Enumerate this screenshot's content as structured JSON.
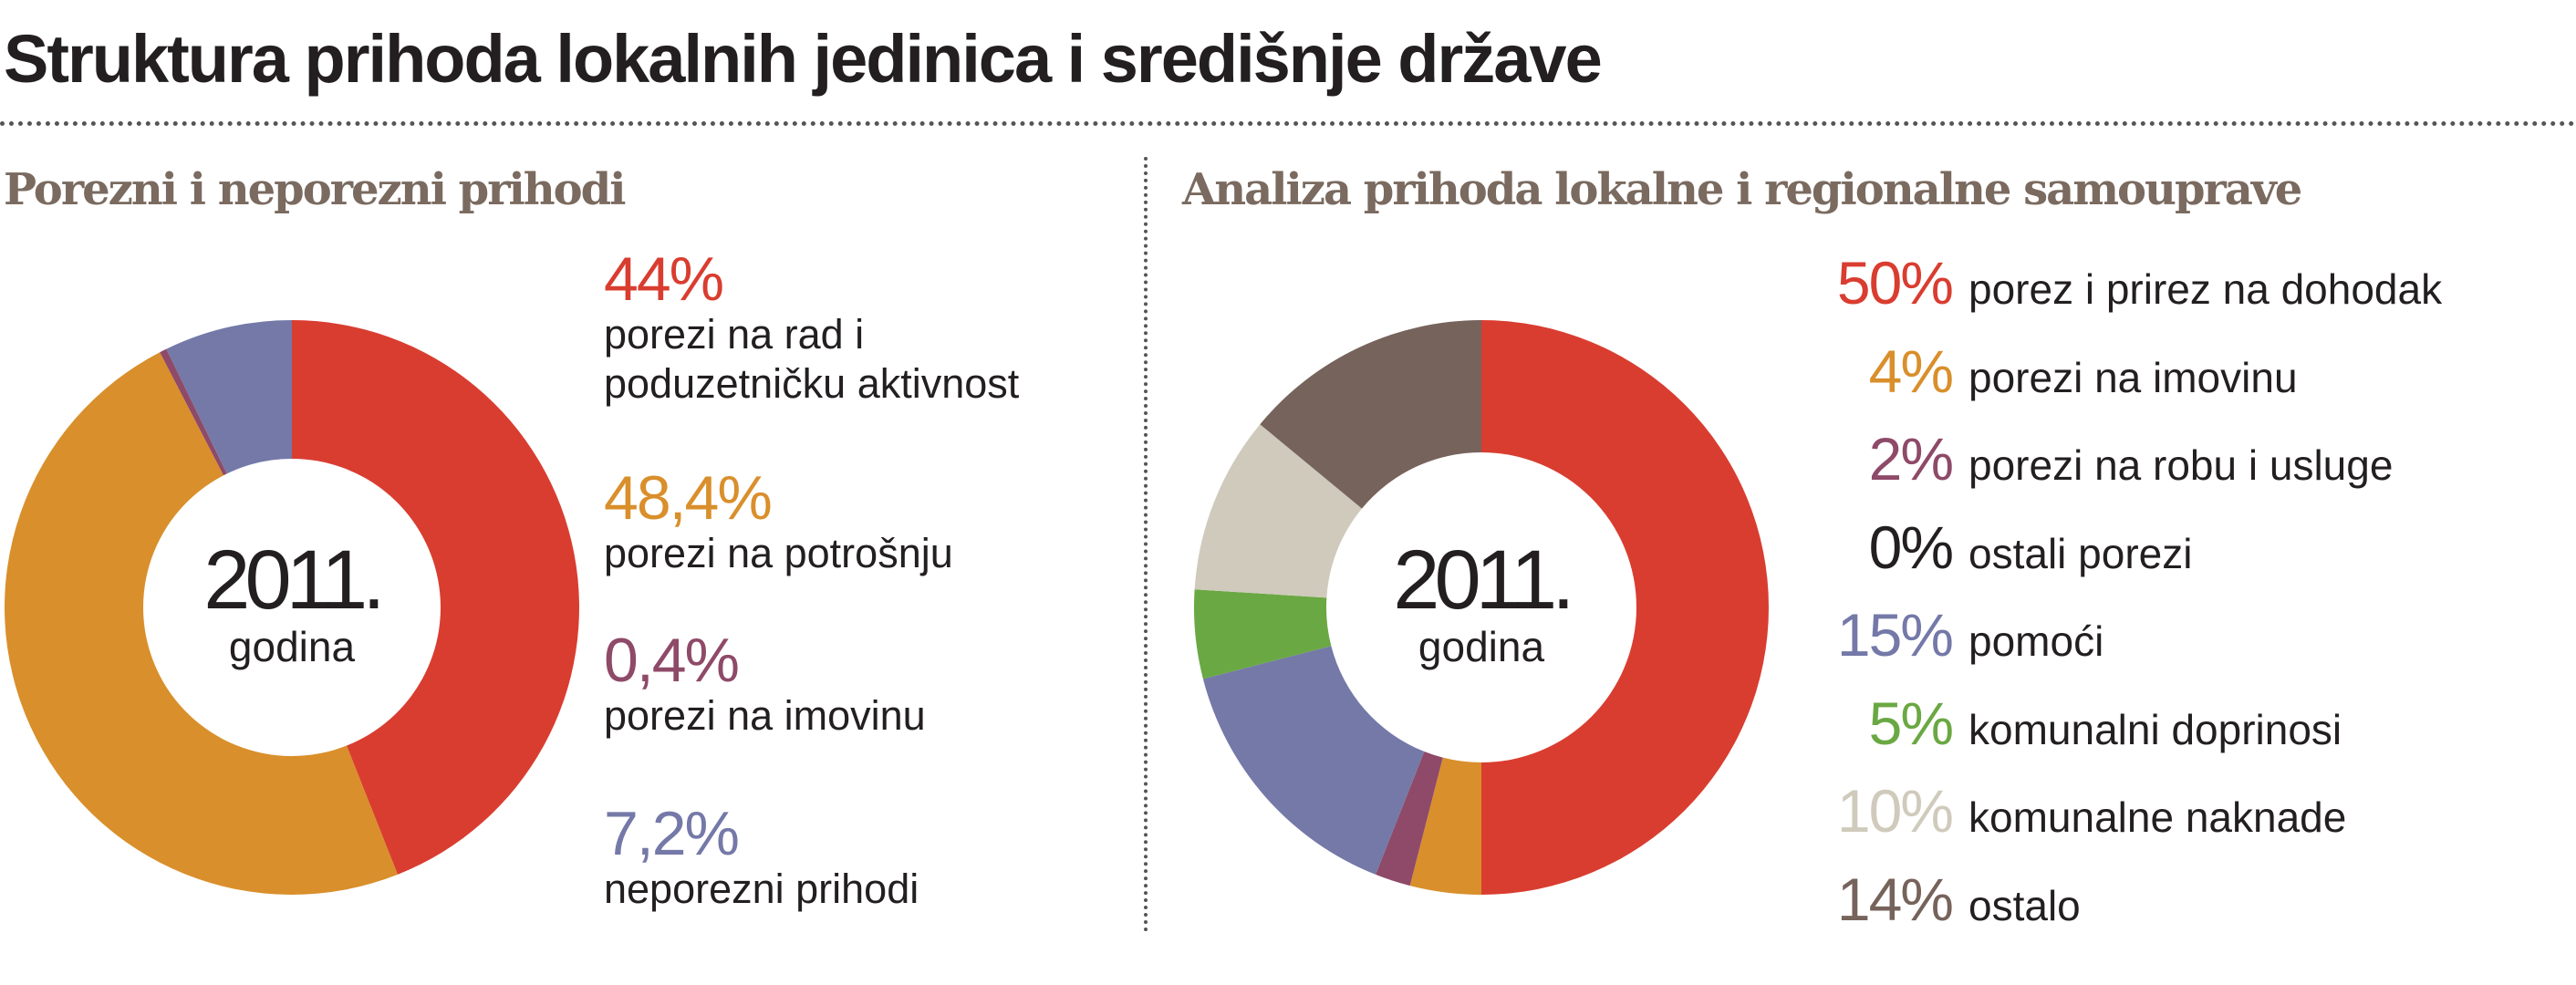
{
  "title": "Struktura prihoda lokalnih jedinica i središnje države",
  "chart_data": [
    {
      "type": "pie",
      "title": "Porezni i neporezni prihodi",
      "center_label": {
        "year": "2011.",
        "caption": "godina"
      },
      "slices": [
        {
          "pct_label": "44%",
          "value": 44,
          "label": "porezi na rad i\npoduzetničku aktivnost",
          "color": "#d93d30"
        },
        {
          "pct_label": "48,4%",
          "value": 48.4,
          "label": "porezi na potrošnju",
          "color": "#d98f2b"
        },
        {
          "pct_label": "0,4%",
          "value": 0.4,
          "label": "porezi na imovinu",
          "color": "#8e4a68"
        },
        {
          "pct_label": "7,2%",
          "value": 7.2,
          "label": "neporezni prihodi",
          "color": "#7479a8"
        }
      ]
    },
    {
      "type": "pie",
      "title": "Analiza prihoda lokalne i regionalne samouprave",
      "center_label": {
        "year": "2011.",
        "caption": "godina"
      },
      "slices": [
        {
          "pct_label": "50%",
          "value": 50,
          "label": "porez i prirez na dohodak",
          "color": "#d93d30"
        },
        {
          "pct_label": "4%",
          "value": 4,
          "label": "porezi na imovinu",
          "color": "#d98f2b"
        },
        {
          "pct_label": "2%",
          "value": 2,
          "label": "porezi na robu i usluge",
          "color": "#8e4a68"
        },
        {
          "pct_label": "0%",
          "value": 0,
          "label": "ostali porezi",
          "color": "#231f20"
        },
        {
          "pct_label": "15%",
          "value": 15,
          "label": "pomoći",
          "color": "#7479a8"
        },
        {
          "pct_label": "5%",
          "value": 5,
          "label": "komunalni doprinosi",
          "color": "#6aa843"
        },
        {
          "pct_label": "10%",
          "value": 10,
          "label": "komunalne naknade",
          "color": "#cfcabb"
        },
        {
          "pct_label": "14%",
          "value": 14,
          "label": "ostalo",
          "color": "#76635b"
        }
      ]
    }
  ]
}
